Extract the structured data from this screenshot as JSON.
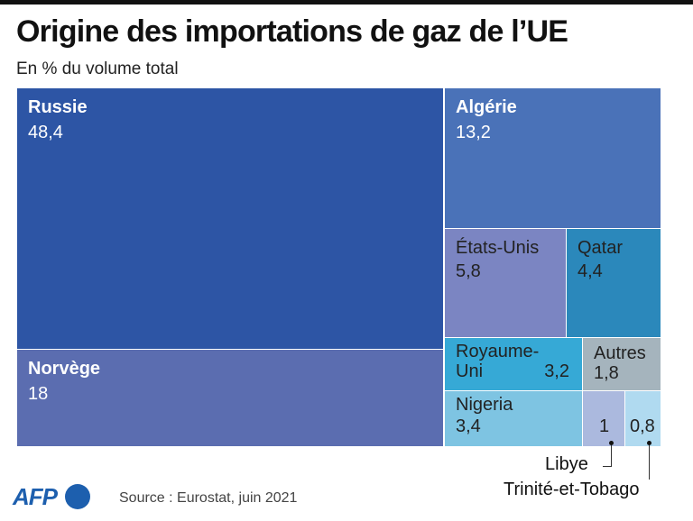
{
  "title": "Origine des importations de gaz de l’UE",
  "subtitle": "En % du volume total",
  "source": "Source : Eurostat, juin 2021",
  "logo": "AFP",
  "chart_data": {
    "type": "treemap",
    "title": "Origine des importations de gaz de l’UE",
    "unit": "% du volume total",
    "items": [
      {
        "name": "Russie",
        "value_label": "48,4",
        "value": 48.4,
        "color": "#2d55a5"
      },
      {
        "name": "Norvège",
        "value_label": "18",
        "value": 18,
        "color": "#5b6db0"
      },
      {
        "name": "Algérie",
        "value_label": "13,2",
        "value": 13.2,
        "color": "#4a72b8"
      },
      {
        "name": "États-Unis",
        "value_label": "5,8",
        "value": 5.8,
        "color": "#7b85c2"
      },
      {
        "name": "Qatar",
        "value_label": "4,4",
        "value": 4.4,
        "color": "#2b88bb"
      },
      {
        "name": "Royaume-Uni",
        "value_label": "3,2",
        "value": 3.2,
        "color": "#36a9d6"
      },
      {
        "name": "Autres",
        "value_label": "1,8",
        "value": 1.8,
        "color": "#a5b4bd"
      },
      {
        "name": "Nigeria",
        "value_label": "3,4",
        "value": 3.4,
        "color": "#7ec4e2"
      },
      {
        "name": "Libye",
        "value_label": "1",
        "value": 1,
        "color": "#abb9de"
      },
      {
        "name": "Trinité-et-Tobago",
        "value_label": "0,8",
        "value": 0.8,
        "color": "#b0daf0"
      }
    ]
  },
  "labels": {
    "ru_line1": "Royaume-",
    "ru_line2": "Uni"
  }
}
